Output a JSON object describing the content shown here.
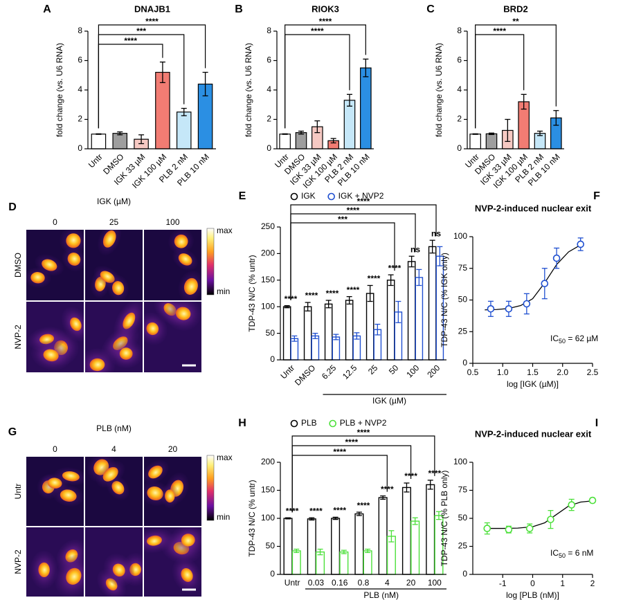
{
  "chart_data": [
    {
      "type": "bar",
      "label": "A",
      "title": "DNAJB1",
      "y_label": "fold change (vs. U6 RNA)",
      "categories": [
        "Untr",
        "DMSO",
        "IGK 33 µM",
        "IGK 100 µM",
        "PLB 2 nM",
        "PLB 10 nM"
      ],
      "values": [
        1,
        1.05,
        0.65,
        5.2,
        2.5,
        4.4
      ],
      "errors": [
        0.02,
        0.1,
        0.3,
        0.7,
        0.25,
        0.8
      ],
      "colors": [
        "#ffffff",
        "#9e9e9e",
        "#f6c9c3",
        "#f27c73",
        "#c5e7f8",
        "#2b8fe3"
      ],
      "ylim": [
        0,
        8
      ],
      "yticks": [
        0,
        2,
        4,
        6,
        8
      ],
      "comparisons": [
        {
          "from": "Untr",
          "to": "PLB 10 nM",
          "label": "****"
        },
        {
          "from": "Untr",
          "to": "PLB 2 nM",
          "label": "***"
        },
        {
          "from": "Untr",
          "to": "IGK 100 µM",
          "label": "****"
        }
      ]
    },
    {
      "type": "bar",
      "label": "B",
      "title": "RIOK3",
      "y_label": "fold change (vs. U6 RNA)",
      "categories": [
        "Untr",
        "DMSO",
        "IGK 33 µM",
        "IGK 100 µM",
        "PLB 2 nM",
        "PLB 10 nM"
      ],
      "values": [
        1,
        1.1,
        1.5,
        0.55,
        3.3,
        5.5
      ],
      "errors": [
        0.02,
        0.1,
        0.4,
        0.15,
        0.4,
        0.6
      ],
      "colors": [
        "#ffffff",
        "#9e9e9e",
        "#f6c9c3",
        "#f27c73",
        "#c5e7f8",
        "#2b8fe3"
      ],
      "ylim": [
        0,
        8
      ],
      "yticks": [
        0,
        2,
        4,
        6,
        8
      ],
      "comparisons": [
        {
          "from": "Untr",
          "to": "PLB 10 nM",
          "label": "****"
        },
        {
          "from": "Untr",
          "to": "PLB 2 nM",
          "label": "****"
        }
      ]
    },
    {
      "type": "bar",
      "label": "C",
      "title": "BRD2",
      "y_label": "fold change (vs. U6 RNA)",
      "categories": [
        "Untr",
        "DMSO",
        "IGK 33 µM",
        "IGK 100 µM",
        "PLB 2 nM",
        "PLB 10 nM"
      ],
      "values": [
        1,
        1.02,
        1.25,
        3.2,
        1.05,
        2.1
      ],
      "errors": [
        0.02,
        0.05,
        0.75,
        0.5,
        0.15,
        0.5
      ],
      "colors": [
        "#ffffff",
        "#9e9e9e",
        "#f6c9c3",
        "#f27c73",
        "#c5e7f8",
        "#2b8fe3"
      ],
      "ylim": [
        0,
        8
      ],
      "yticks": [
        0,
        2,
        4,
        6,
        8
      ],
      "comparisons": [
        {
          "from": "Untr",
          "to": "PLB 10 nM",
          "label": "**"
        },
        {
          "from": "Untr",
          "to": "IGK 100 µM",
          "label": "****"
        }
      ]
    },
    {
      "type": "grouped_bar",
      "label": "E",
      "y_label": "TDP-43 N/C (% untr)",
      "categories": [
        "Untr",
        "DMSO",
        "6.25",
        "12.5",
        "25",
        "50",
        "100",
        "200"
      ],
      "series": [
        {
          "name": "IGK",
          "color": "#000000",
          "values": [
            100,
            100,
            105,
            112,
            125,
            150,
            185,
            213
          ],
          "errors": [
            2,
            8,
            7,
            7,
            15,
            10,
            10,
            12
          ]
        },
        {
          "name": "IGK + NVP2",
          "color": "#1f4fd0",
          "values": [
            40,
            45,
            43,
            45,
            57,
            90,
            155,
            195
          ],
          "errors": [
            5,
            5,
            5,
            6,
            10,
            20,
            15,
            18
          ]
        }
      ],
      "ylim": [
        0,
        250
      ],
      "yticks": [
        0,
        50,
        100,
        150,
        200,
        250
      ],
      "significance": [
        "****",
        "****",
        "****",
        "****",
        "****",
        "****",
        "ns",
        "ns"
      ],
      "comparisons": [
        {
          "from": "Untr",
          "to": "200",
          "label": "****"
        },
        {
          "from": "Untr",
          "to": "100",
          "label": "****"
        },
        {
          "from": "Untr",
          "to": "50",
          "label": "***"
        }
      ],
      "group_label": "IGK (µM)"
    },
    {
      "type": "dose_response",
      "label": "F",
      "title": "NVP-2-induced nuclear exit",
      "x_label": "log [IGK (µM)]",
      "y_label": "TDP-43 N/C (% IGK only)",
      "x": [
        0.8,
        1.1,
        1.4,
        1.7,
        1.9,
        2.3
      ],
      "values": [
        43,
        43,
        47,
        63,
        83,
        94
      ],
      "errors": [
        6,
        6,
        8,
        12,
        8,
        5
      ],
      "fit": {
        "x": [
          0.7,
          0.9,
          1.1,
          1.3,
          1.5,
          1.7,
          1.9,
          2.1,
          2.3
        ],
        "y": [
          42.2,
          42.5,
          43.3,
          45.6,
          51,
          63.5,
          78,
          88,
          93.5
        ]
      },
      "xlim": [
        0.5,
        2.5
      ],
      "xticks": [
        0.5,
        {
          "value": 1,
          "label": "1.0"
        },
        1.5,
        {
          "value": 2,
          "label": "2.0"
        },
        2.5
      ],
      "ylim": [
        0,
        100
      ],
      "yticks": [
        0,
        25,
        50,
        75,
        100
      ],
      "color": "#1f4fd0",
      "ic50": {
        "symbol": "IC",
        "subscript": "50",
        "text": " = 62 µM"
      }
    },
    {
      "type": "grouped_bar",
      "label": "H",
      "y_label": "TDP-43 N/C (% untr)",
      "categories": [
        "Untr",
        "0.03",
        "0.16",
        "0.8",
        "4",
        "20",
        "100"
      ],
      "series": [
        {
          "name": "PLB",
          "color": "#000000",
          "values": [
            100,
            99,
            100,
            108,
            137,
            155,
            160
          ],
          "errors": [
            1,
            2,
            2,
            3,
            3,
            8,
            8
          ]
        },
        {
          "name": "PLB + NVP2",
          "color": "#4ce03a",
          "values": [
            42,
            40,
            40,
            42,
            68,
            95,
            105
          ],
          "errors": [
            3,
            5,
            3,
            3,
            10,
            6,
            7
          ]
        }
      ],
      "ylim": [
        0,
        200
      ],
      "yticks": [
        0,
        50,
        100,
        150,
        200
      ],
      "significance": [
        "****",
        "****",
        "****",
        "****",
        "****",
        "****",
        "****"
      ],
      "comparisons": [
        {
          "from": "Untr",
          "to": "100",
          "label": "****"
        },
        {
          "from": "Untr",
          "to": "20",
          "label": "****"
        },
        {
          "from": "Untr",
          "to": "4",
          "label": "****"
        }
      ],
      "group_label": "PLB (nM)"
    },
    {
      "type": "dose_response",
      "label": "I",
      "title": "NVP-2-induced nuclear exit",
      "x_label": "log [PLB (nM)]",
      "y_label": "TDP-43 N/C (% PLB only)",
      "x": [
        -1.52,
        -0.8,
        -0.1,
        0.6,
        1.3,
        2.0
      ],
      "values": [
        41,
        40,
        41,
        49,
        62,
        66
      ],
      "errors": [
        5,
        3,
        4,
        8,
        5,
        2
      ],
      "fit": {
        "x": [
          -1.6,
          -1,
          -0.5,
          0,
          0.4,
          0.8,
          1.2,
          1.6,
          2
        ],
        "y": [
          41,
          41,
          41.3,
          42.5,
          46,
          53.5,
          61,
          64.5,
          65.6
        ]
      },
      "xlim": [
        -2,
        2
      ],
      "xticks": [
        -1,
        0,
        1,
        2
      ],
      "ylim": [
        0,
        100
      ],
      "yticks": [
        0,
        25,
        50,
        75,
        100
      ],
      "color": "#4ce03a",
      "ic50": {
        "symbol": "IC",
        "subscript": "50",
        "text": " = 6 nM"
      }
    }
  ],
  "micrographs": [
    {
      "label": "D",
      "header": "IGK (µM)",
      "columns": [
        "0",
        "25",
        "100"
      ],
      "rows": [
        "DMSO",
        "NVP-2"
      ],
      "scale_max": "max",
      "scale_min": "min"
    },
    {
      "label": "G",
      "header": "PLB (nM)",
      "columns": [
        "0",
        "4",
        "20"
      ],
      "rows": [
        "Untr",
        "NVP-2"
      ],
      "scale_max": "max",
      "scale_min": "min"
    }
  ]
}
